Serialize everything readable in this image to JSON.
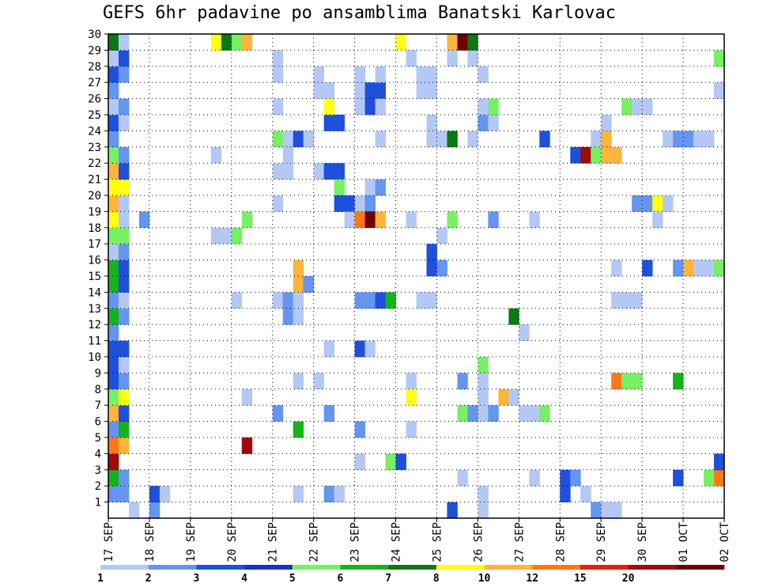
{
  "chart_data": {
    "type": "heatmap",
    "title": "GEFS 6hr padavine po ansamblima Banatski Karlovac",
    "x_tick_labels": [
      "17 SEP",
      "18 SEP",
      "19 SEP",
      "20 SEP",
      "21 SEP",
      "22 SEP",
      "23 SEP",
      "24 SEP",
      "25 SEP",
      "26 SEP",
      "27 SEP",
      "28 SEP",
      "29 SEP",
      "30 SEP",
      "01 OCT",
      "02 OCT"
    ],
    "y_tick_labels": [
      "1",
      "2",
      "3",
      "4",
      "5",
      "6",
      "7",
      "8",
      "9",
      "10",
      "11",
      "12",
      "13",
      "14",
      "15",
      "16",
      "17",
      "18",
      "19",
      "20",
      "21",
      "22",
      "23",
      "24",
      "25",
      "26",
      "27",
      "28",
      "29",
      "30"
    ],
    "colorbar": {
      "labels": [
        "1",
        "2",
        "3",
        "4",
        "5",
        "6",
        "7",
        "8",
        "10",
        "12",
        "15",
        "20"
      ],
      "colors": [
        "#b4c8f5",
        "#6496f0",
        "#1e50dc",
        "#1432c8",
        "#78f064",
        "#14b41e",
        "#0a7814",
        "#ffff14",
        "#ffb43c",
        "#ff7814",
        "#e61e14",
        "#a00a0a",
        "#6e0000"
      ]
    },
    "x_axis": {
      "start": "17 SEP 00Z",
      "end": "02 OCT 00Z",
      "step": "6 hours"
    },
    "y_range": [
      0,
      30
    ],
    "grid": "dotted",
    "cells": [
      [
        1,
        1,
        2
      ],
      [
        1,
        2,
        3
      ],
      [
        1.25,
        2,
        1
      ],
      [
        0,
        2,
        2
      ],
      [
        0.25,
        2,
        2
      ],
      [
        0,
        3,
        6
      ],
      [
        0.25,
        3,
        2
      ],
      [
        0,
        4,
        12
      ],
      [
        0,
        5,
        10
      ],
      [
        0.25,
        5,
        9
      ],
      [
        0,
        6,
        2
      ],
      [
        0.25,
        6,
        6
      ],
      [
        0,
        7,
        9
      ],
      [
        0.25,
        7,
        3
      ],
      [
        0,
        8,
        5
      ],
      [
        0.25,
        8,
        8
      ],
      [
        0,
        9,
        3
      ],
      [
        0.25,
        9,
        2
      ],
      [
        0,
        10,
        3
      ],
      [
        0.25,
        10,
        1
      ],
      [
        0,
        11,
        3
      ],
      [
        0.25,
        11,
        3
      ],
      [
        0,
        12,
        2
      ],
      [
        0,
        13,
        6
      ],
      [
        0.25,
        13,
        2
      ],
      [
        0,
        14,
        2
      ],
      [
        0.25,
        14,
        1
      ],
      [
        0,
        15,
        6
      ],
      [
        0.25,
        15,
        3
      ],
      [
        0,
        16,
        6
      ],
      [
        0.25,
        16,
        3
      ],
      [
        0,
        17,
        1
      ],
      [
        0.25,
        17,
        2
      ],
      [
        0,
        18,
        5
      ],
      [
        0.25,
        18,
        5
      ],
      [
        0,
        19,
        8
      ],
      [
        0.25,
        19,
        1
      ],
      [
        0,
        20,
        9
      ],
      [
        0.25,
        20,
        1
      ],
      [
        0,
        21,
        8
      ],
      [
        0.25,
        21,
        8
      ],
      [
        0,
        22,
        9
      ],
      [
        0.25,
        22,
        3
      ],
      [
        0,
        23,
        5
      ],
      [
        0.25,
        23,
        2
      ],
      [
        0,
        24,
        2
      ],
      [
        0,
        25,
        3
      ],
      [
        0.25,
        25,
        1
      ],
      [
        0,
        26,
        1
      ],
      [
        0.25,
        26,
        2
      ],
      [
        0,
        27,
        2
      ],
      [
        0,
        28,
        3
      ],
      [
        0.25,
        28,
        2
      ],
      [
        0,
        29,
        1
      ],
      [
        0.25,
        29,
        3
      ],
      [
        0,
        30,
        7
      ],
      [
        0.25,
        30,
        1
      ],
      [
        0.5,
        1,
        1
      ],
      [
        0.75,
        19,
        2
      ],
      [
        3,
        14,
        1
      ],
      [
        2.5,
        18,
        1
      ],
      [
        2.75,
        18,
        1
      ],
      [
        2.5,
        23,
        1
      ],
      [
        2.5,
        30,
        8
      ],
      [
        2.75,
        30,
        7
      ],
      [
        3,
        30,
        5
      ],
      [
        3.25,
        30,
        9
      ],
      [
        3,
        18,
        5
      ],
      [
        3.25,
        19,
        5
      ],
      [
        3.25,
        8,
        1
      ],
      [
        3.25,
        5,
        12
      ],
      [
        4,
        29,
        1
      ],
      [
        4,
        28,
        1
      ],
      [
        4,
        26,
        1
      ],
      [
        4,
        24,
        5
      ],
      [
        4,
        22,
        1
      ],
      [
        4,
        20,
        1
      ],
      [
        4.25,
        24,
        1
      ],
      [
        4.5,
        24,
        3
      ],
      [
        4.75,
        24,
        3
      ],
      [
        4.25,
        23,
        1
      ],
      [
        4.25,
        22,
        1
      ],
      [
        4,
        14,
        1
      ],
      [
        4.25,
        14,
        2
      ],
      [
        4.5,
        14,
        1
      ],
      [
        4.5,
        15,
        9
      ],
      [
        4.75,
        15,
        5
      ],
      [
        4.75,
        15,
        3
      ],
      [
        4.75,
        24,
        1
      ],
      [
        5,
        28,
        1
      ],
      [
        5,
        27,
        1
      ],
      [
        5.25,
        27,
        1
      ],
      [
        5.25,
        25,
        3
      ],
      [
        5.5,
        25,
        3
      ],
      [
        5.25,
        26,
        8
      ],
      [
        5,
        22,
        1
      ],
      [
        5.25,
        22,
        3
      ],
      [
        5.5,
        22,
        3
      ],
      [
        5.5,
        21,
        5
      ],
      [
        5.75,
        20,
        3
      ],
      [
        5.5,
        20,
        3
      ],
      [
        4.5,
        16,
        9
      ],
      [
        4.25,
        13,
        2
      ],
      [
        4.5,
        13,
        1
      ],
      [
        4.75,
        15,
        2
      ],
      [
        5,
        9,
        1
      ],
      [
        5.25,
        2,
        2
      ],
      [
        5.5,
        2,
        1
      ],
      [
        4.5,
        9,
        1
      ],
      [
        4.5,
        6,
        6
      ],
      [
        4,
        7,
        2
      ],
      [
        4.5,
        2,
        1
      ],
      [
        5.25,
        7,
        2
      ],
      [
        5.25,
        11,
        1
      ],
      [
        6,
        28,
        1
      ],
      [
        6,
        27,
        1
      ],
      [
        6.25,
        27,
        3
      ],
      [
        6.5,
        27,
        3
      ],
      [
        6.5,
        28,
        1
      ],
      [
        6,
        26,
        1
      ],
      [
        6.25,
        26,
        3
      ],
      [
        6.5,
        26,
        1
      ],
      [
        6.25,
        21,
        1
      ],
      [
        6.5,
        21,
        2
      ],
      [
        6,
        20,
        1
      ],
      [
        6.25,
        20,
        2
      ],
      [
        5.75,
        19,
        1
      ],
      [
        6,
        19,
        10
      ],
      [
        6.25,
        19,
        13
      ],
      [
        6.5,
        19,
        9
      ],
      [
        6,
        14,
        2
      ],
      [
        6.25,
        14,
        2
      ],
      [
        6.5,
        14,
        3
      ],
      [
        6.75,
        14,
        6
      ],
      [
        6,
        11,
        3
      ],
      [
        6.25,
        11,
        1
      ],
      [
        6,
        6,
        2
      ],
      [
        6,
        4,
        1
      ],
      [
        6.75,
        4,
        5
      ],
      [
        7,
        4,
        3
      ],
      [
        7,
        30,
        8
      ],
      [
        7.25,
        29,
        1
      ],
      [
        7.5,
        28,
        1
      ],
      [
        7.5,
        27,
        1
      ],
      [
        7.75,
        28,
        1
      ],
      [
        7.75,
        27,
        1
      ],
      [
        8.25,
        29,
        1
      ],
      [
        8,
        24,
        1
      ],
      [
        7.75,
        24,
        1
      ],
      [
        7.25,
        19,
        1
      ],
      [
        7.5,
        14,
        1
      ],
      [
        7.75,
        14,
        1
      ],
      [
        7.25,
        9,
        1
      ],
      [
        7.25,
        8,
        8
      ],
      [
        7.25,
        6,
        1
      ],
      [
        7.75,
        25,
        1
      ],
      [
        8.25,
        19,
        5
      ],
      [
        8,
        18,
        1
      ],
      [
        7.75,
        17,
        3
      ],
      [
        7.75,
        16,
        3
      ],
      [
        8,
        16,
        2
      ],
      [
        8.25,
        1,
        3
      ],
      [
        8.5,
        3,
        1
      ],
      [
        8.5,
        9,
        2
      ],
      [
        8.75,
        29,
        1
      ],
      [
        8.25,
        30,
        9
      ],
      [
        8.5,
        30,
        13
      ],
      [
        8.75,
        30,
        7
      ],
      [
        8.25,
        24,
        7
      ],
      [
        8.75,
        24,
        1
      ],
      [
        8.5,
        7,
        5
      ],
      [
        8.75,
        7,
        2
      ],
      [
        9,
        7,
        1
      ],
      [
        9,
        8,
        1
      ],
      [
        9.25,
        7,
        2
      ],
      [
        9,
        9,
        1
      ],
      [
        9,
        10,
        5
      ],
      [
        9,
        25,
        2
      ],
      [
        9.25,
        25,
        1
      ],
      [
        9,
        26,
        1
      ],
      [
        9.25,
        26,
        5
      ],
      [
        9,
        28,
        1
      ],
      [
        9.25,
        19,
        2
      ],
      [
        9,
        2,
        1
      ],
      [
        9,
        1,
        1
      ],
      [
        9,
        26,
        1
      ],
      [
        9.5,
        8,
        9
      ],
      [
        9.75,
        8,
        1
      ],
      [
        9.75,
        13,
        7
      ],
      [
        10,
        12,
        1
      ],
      [
        10,
        7,
        1
      ],
      [
        10.25,
        7,
        1
      ],
      [
        10.5,
        7,
        5
      ],
      [
        10.25,
        3,
        1
      ],
      [
        10.25,
        19,
        1
      ],
      [
        10.5,
        24,
        3
      ],
      [
        11,
        3,
        3
      ],
      [
        11,
        2,
        3
      ],
      [
        11.25,
        3,
        2
      ],
      [
        11.5,
        2,
        1
      ],
      [
        11.75,
        1,
        2
      ],
      [
        11.25,
        23,
        3
      ],
      [
        11.5,
        23,
        12
      ],
      [
        11.75,
        23,
        5
      ],
      [
        11.75,
        24,
        1
      ],
      [
        12,
        23,
        9
      ],
      [
        12,
        24,
        9
      ],
      [
        12,
        25,
        1
      ],
      [
        12.25,
        23,
        9
      ],
      [
        12,
        1,
        1
      ],
      [
        12.25,
        1,
        1
      ],
      [
        12.25,
        9,
        10
      ],
      [
        12.5,
        9,
        5
      ],
      [
        12.75,
        9,
        5
      ],
      [
        12.25,
        14,
        1
      ],
      [
        12.5,
        14,
        1
      ],
      [
        12.75,
        14,
        1
      ],
      [
        12.25,
        16,
        1
      ],
      [
        12.5,
        26,
        5
      ],
      [
        12.75,
        26,
        1
      ],
      [
        13,
        26,
        1
      ],
      [
        12.75,
        20,
        2
      ],
      [
        13,
        20,
        2
      ],
      [
        13,
        16,
        3
      ],
      [
        13.25,
        19,
        1
      ],
      [
        13.5,
        24,
        1
      ],
      [
        13.75,
        24,
        2
      ],
      [
        13.25,
        20,
        8
      ],
      [
        13.5,
        20,
        1
      ],
      [
        13.75,
        9,
        6
      ],
      [
        13.75,
        3,
        3
      ],
      [
        14,
        24,
        2
      ],
      [
        14.25,
        24,
        1
      ],
      [
        14.5,
        24,
        1
      ],
      [
        13.75,
        16,
        2
      ],
      [
        14,
        16,
        9
      ],
      [
        14.25,
        16,
        1
      ],
      [
        14.5,
        16,
        1
      ],
      [
        14.75,
        16,
        5
      ],
      [
        14.5,
        3,
        5
      ],
      [
        14.75,
        3,
        10
      ],
      [
        14.75,
        4,
        3
      ],
      [
        14.75,
        29,
        5
      ],
      [
        14.75,
        27,
        1
      ],
      [
        6.5,
        24,
        1
      ]
    ]
  }
}
